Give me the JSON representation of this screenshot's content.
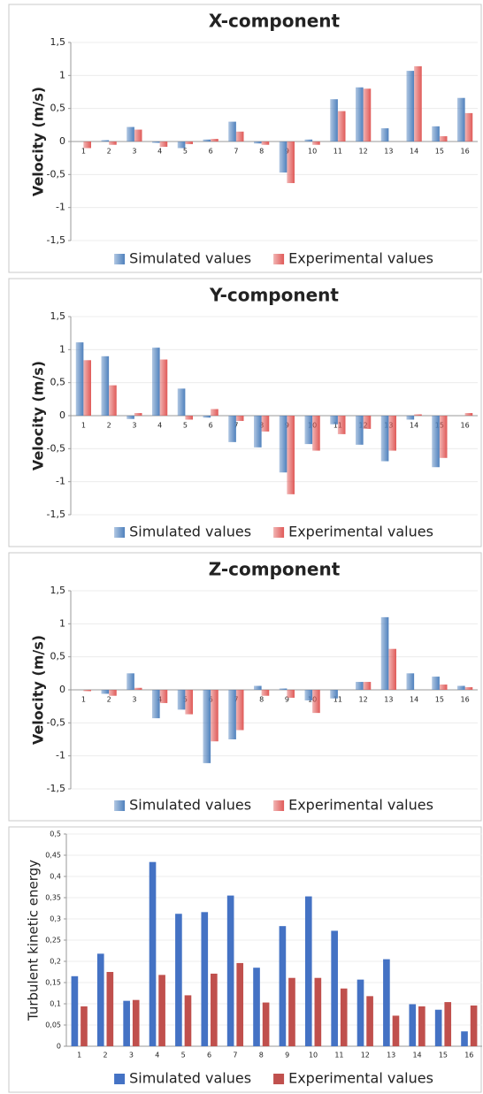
{
  "chart_data": [
    {
      "type": "bar",
      "title": "X-component",
      "y_label": "Velocity (m/s)",
      "categories": [
        "1",
        "2",
        "3",
        "4",
        "5",
        "6",
        "7",
        "8",
        "9",
        "10",
        "11",
        "12",
        "13",
        "14",
        "15",
        "16"
      ],
      "series": [
        {
          "name": "Simulated values",
          "color": "#4f81bd",
          "values": [
            0.0,
            0.02,
            0.22,
            -0.02,
            -0.1,
            0.03,
            0.3,
            -0.03,
            -0.47,
            0.03,
            0.64,
            0.82,
            0.2,
            1.07,
            0.23,
            0.66
          ]
        },
        {
          "name": "Experimental values",
          "color": "#e05a58",
          "values": [
            -0.1,
            -0.05,
            0.18,
            -0.08,
            -0.04,
            0.04,
            0.15,
            -0.05,
            -0.63,
            -0.05,
            0.46,
            0.8,
            0.0,
            1.14,
            0.08,
            0.43
          ]
        }
      ],
      "ylim": [
        -1.5,
        1.5
      ],
      "yticks": [
        {
          "value": 1.5,
          "label": "1,5"
        },
        1,
        {
          "value": 0.5,
          "label": "0,5"
        },
        0,
        {
          "value": -0.5,
          "label": "-0,5"
        },
        -1,
        {
          "value": -1.5,
          "label": "-1,5"
        }
      ],
      "grid": true,
      "gradient": true,
      "legend": "bottom"
    },
    {
      "type": "bar",
      "title": "Y-component",
      "y_label": "Velocity (m/s)",
      "categories": [
        "1",
        "2",
        "3",
        "4",
        "5",
        "6",
        "7",
        "8",
        "9",
        "10",
        "11",
        "12",
        "13",
        "14",
        "15",
        "16"
      ],
      "series": [
        {
          "name": "Simulated values",
          "color": "#4f81bd",
          "values": [
            1.11,
            0.9,
            -0.05,
            1.03,
            0.41,
            -0.03,
            -0.4,
            -0.48,
            -0.86,
            -0.43,
            -0.13,
            -0.44,
            -0.69,
            -0.06,
            -0.78,
            0.0
          ]
        },
        {
          "name": "Experimental values",
          "color": "#e05a58",
          "values": [
            0.84,
            0.46,
            0.04,
            0.85,
            -0.06,
            0.1,
            -0.08,
            -0.24,
            -1.19,
            -0.53,
            -0.28,
            -0.2,
            -0.53,
            0.02,
            -0.64,
            0.04
          ]
        }
      ],
      "ylim": [
        -1.5,
        1.5
      ],
      "yticks": [
        {
          "value": 1.5,
          "label": "1,5"
        },
        1,
        {
          "value": 0.5,
          "label": "0,5"
        },
        0,
        {
          "value": -0.5,
          "label": "-0,5"
        },
        -1,
        {
          "value": -1.5,
          "label": "-1,5"
        }
      ],
      "grid": true,
      "gradient": true,
      "legend": "bottom"
    },
    {
      "type": "bar",
      "title": "Z-component",
      "y_label": "Velocity (m/s)",
      "categories": [
        "1",
        "2",
        "3",
        "4",
        "5",
        "6",
        "7",
        "8",
        "9",
        "10",
        "11",
        "12",
        "13",
        "14",
        "15",
        "16"
      ],
      "series": [
        {
          "name": "Simulated values",
          "color": "#4f81bd",
          "values": [
            0.0,
            -0.06,
            0.25,
            -0.43,
            -0.3,
            -1.11,
            -0.75,
            0.06,
            0.02,
            -0.16,
            -0.13,
            0.12,
            1.1,
            0.25,
            0.2,
            0.06
          ]
        },
        {
          "name": "Experimental values",
          "color": "#e05a58",
          "values": [
            -0.02,
            -0.09,
            0.03,
            -0.2,
            -0.37,
            -0.78,
            -0.61,
            -0.09,
            -0.12,
            -0.35,
            0.0,
            0.12,
            0.62,
            0.0,
            0.08,
            0.04
          ]
        }
      ],
      "ylim": [
        -1.5,
        1.5
      ],
      "yticks": [
        {
          "value": 1.5,
          "label": "1,5"
        },
        1,
        {
          "value": 0.5,
          "label": "0,5"
        },
        0,
        {
          "value": -0.5,
          "label": "-0,5"
        },
        -1,
        {
          "value": -1.5,
          "label": "-1,5"
        }
      ],
      "grid": true,
      "gradient": true,
      "legend": "bottom"
    },
    {
      "type": "bar",
      "y_label": "Turbulent kinetic energy",
      "categories": [
        "1",
        "2",
        "3",
        "4",
        "5",
        "6",
        "7",
        "8",
        "9",
        "10",
        "11",
        "12",
        "13",
        "14",
        "15",
        "16"
      ],
      "series": [
        {
          "name": "Simulated values",
          "color": "#4472c4",
          "values": [
            0.165,
            0.218,
            0.107,
            0.434,
            0.312,
            0.316,
            0.355,
            0.185,
            0.283,
            0.353,
            0.272,
            0.157,
            0.205,
            0.099,
            0.086,
            0.035
          ]
        },
        {
          "name": "Experimental values",
          "color": "#c0504d",
          "values": [
            0.094,
            0.175,
            0.109,
            0.168,
            0.12,
            0.171,
            0.196,
            0.103,
            0.161,
            0.161,
            0.136,
            0.118,
            0.072,
            0.094,
            0.104,
            0.096
          ]
        }
      ],
      "ylim": [
        0,
        0.5
      ],
      "yticks": [
        0,
        {
          "value": 0.05,
          "label": "0,05"
        },
        {
          "value": 0.1,
          "label": "0,1"
        },
        {
          "value": 0.15,
          "label": "0,15"
        },
        {
          "value": 0.2,
          "label": "0,2"
        },
        {
          "value": 0.25,
          "label": "0,25"
        },
        {
          "value": 0.3,
          "label": "0,3"
        },
        {
          "value": 0.35,
          "label": "0,35"
        },
        {
          "value": 0.4,
          "label": "0,4"
        },
        {
          "value": 0.45,
          "label": "0,45"
        },
        {
          "value": 0.5,
          "label": "0,5"
        }
      ],
      "grid": true,
      "gradient": false,
      "legend": "bottom"
    }
  ]
}
